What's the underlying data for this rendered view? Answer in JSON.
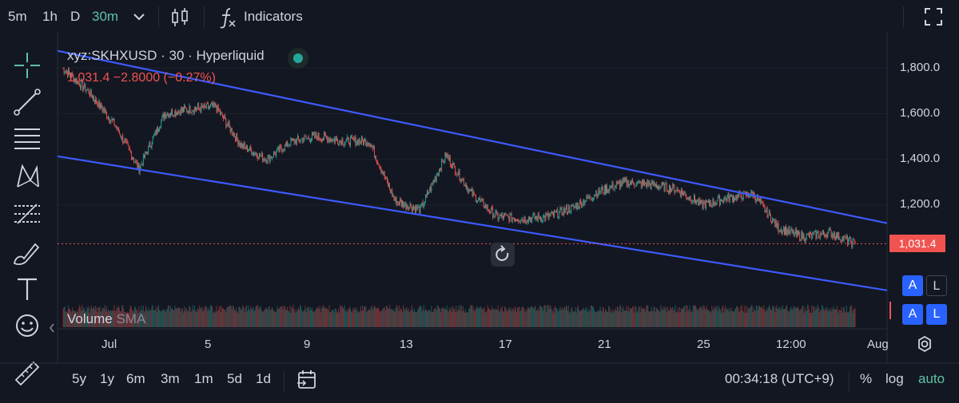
{
  "topbar": {
    "intervals": [
      "5m",
      "1h",
      "D",
      "30m"
    ],
    "active_interval": "30m",
    "indicators_label": "Indicators"
  },
  "legend": {
    "symbol": "xyz:SKHXUSD · 30 · Hyperliquid",
    "change": "1,031.4 −2.8000 (−0.27%)"
  },
  "price_tag": "1,031.4",
  "axis_buttons": {
    "auto": "A",
    "log": "L"
  },
  "volume": {
    "label": "Volume",
    "sma": "SMA"
  },
  "bottombar": {
    "ranges": [
      "5y",
      "1y",
      "6m",
      "3m",
      "1m",
      "5d",
      "1d"
    ],
    "clock": "00:34:18 (UTC+9)",
    "percent": "%",
    "log": "log",
    "auto": "auto"
  },
  "colors": {
    "background": "#131722",
    "up": "#26a69a",
    "down": "#ef5350",
    "trendline": "#3d5afe",
    "accent": "#5fc2a4"
  },
  "chart_data": {
    "type": "line",
    "x_ticks": [
      "Jul",
      "5",
      "9",
      "13",
      "17",
      "21",
      "25",
      "12:00",
      "Aug"
    ],
    "y_ticks": [
      "1,800.0",
      "1,600.0",
      "1,400.0",
      "1,200.0"
    ],
    "ylim": [
      800,
      1900
    ],
    "last_price": 1031.4,
    "x_dates": [
      "2025-06-30",
      "2025-07-01",
      "2025-07-02",
      "2025-07-03",
      "2025-07-04",
      "2025-07-05",
      "2025-07-06",
      "2025-07-07",
      "2025-07-08",
      "2025-07-09",
      "2025-07-10",
      "2025-07-11",
      "2025-07-12",
      "2025-07-13",
      "2025-07-14",
      "2025-07-15",
      "2025-07-16",
      "2025-07-17",
      "2025-07-18",
      "2025-07-19",
      "2025-07-20",
      "2025-07-21",
      "2025-07-22",
      "2025-07-23",
      "2025-07-24",
      "2025-07-25",
      "2025-07-26",
      "2025-07-27",
      "2025-07-28",
      "2025-07-29",
      "2025-07-30",
      "2025-07-31"
    ],
    "close": [
      1800,
      1700,
      1560,
      1360,
      1600,
      1620,
      1630,
      1460,
      1400,
      1480,
      1500,
      1480,
      1480,
      1220,
      1180,
      1420,
      1250,
      1150,
      1140,
      1150,
      1190,
      1260,
      1300,
      1290,
      1270,
      1200,
      1230,
      1250,
      1100,
      1060,
      1080,
      1031
    ],
    "upper_channel": {
      "start": [
        "2025-06-30",
        1870
      ],
      "end": [
        "2025-07-31",
        1150
      ]
    },
    "lower_channel": {
      "start": [
        "2025-06-30",
        1410
      ],
      "end": [
        "2025-07-31",
        850
      ]
    }
  }
}
